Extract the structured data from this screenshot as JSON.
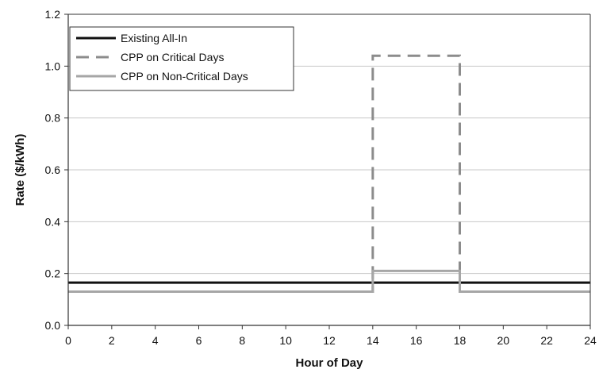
{
  "chart_data": {
    "type": "line",
    "title": "",
    "xlabel": "Hour of Day",
    "ylabel": "Rate ($/kWh)",
    "xlim": [
      0,
      24
    ],
    "ylim": [
      0,
      1.2
    ],
    "xticks": [
      0,
      2,
      4,
      6,
      8,
      10,
      12,
      14,
      16,
      18,
      20,
      22,
      24
    ],
    "yticks": [
      0.0,
      0.2,
      0.4,
      0.6,
      0.8,
      1.0,
      1.2
    ],
    "xtick_labels": [
      "0",
      "2",
      "4",
      "6",
      "8",
      "10",
      "12",
      "14",
      "16",
      "18",
      "20",
      "22",
      "24"
    ],
    "ytick_labels": [
      "0.0",
      "0.2",
      "0.4",
      "0.6",
      "0.8",
      "1.0",
      "1.2"
    ],
    "grid": "horizontal",
    "legend_position": "top-left",
    "series": [
      {
        "name": "Existing All-In",
        "color": "#111111",
        "style": "solid",
        "x": [
          0,
          24
        ],
        "y": [
          0.165,
          0.165
        ]
      },
      {
        "name": "CPP on Critical Days",
        "color": "#8c8c8c",
        "style": "dashed",
        "x": [
          0,
          14,
          14,
          18,
          18,
          24
        ],
        "y": [
          0.13,
          0.13,
          1.04,
          1.04,
          0.13,
          0.13
        ]
      },
      {
        "name": "CPP on Non-Critical Days",
        "color": "#a6a6a6",
        "style": "solid",
        "x": [
          0,
          14,
          14,
          18,
          18,
          24
        ],
        "y": [
          0.13,
          0.13,
          0.21,
          0.21,
          0.13,
          0.13
        ]
      }
    ]
  }
}
